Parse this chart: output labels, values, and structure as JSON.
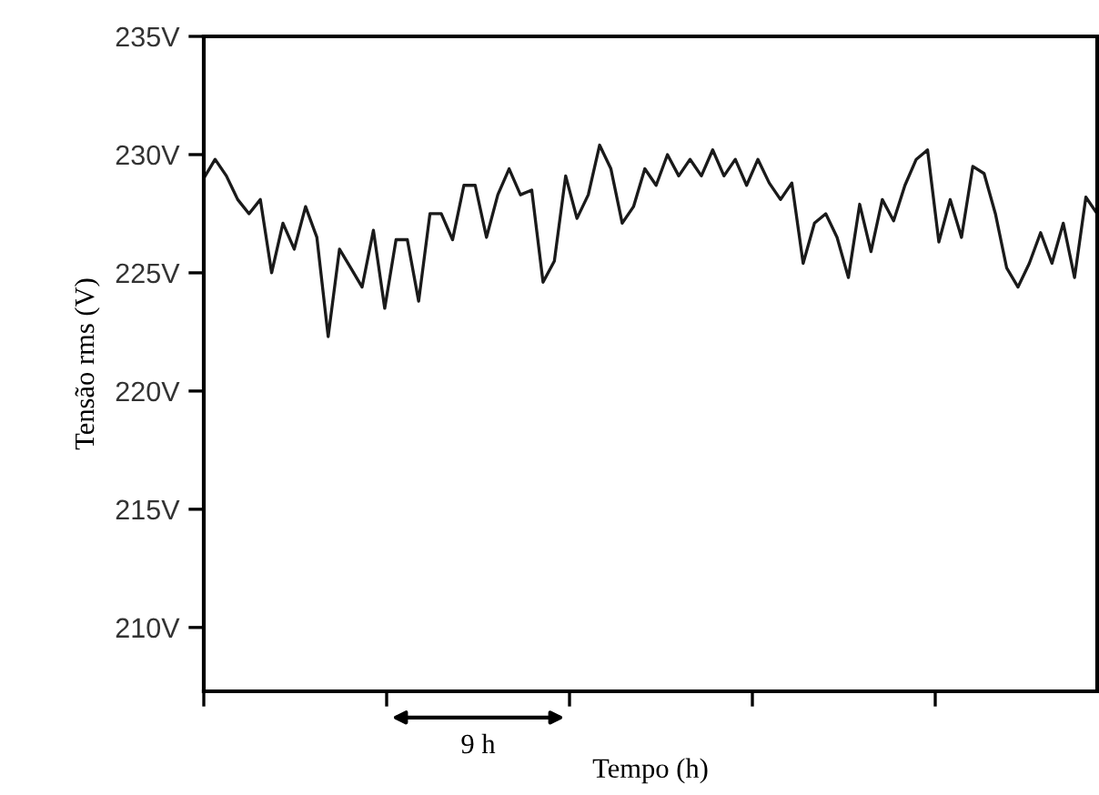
{
  "chart_data": {
    "type": "line",
    "xlabel": "Tempo (h)",
    "ylabel": "Tensão rms (V)",
    "annotations": [
      "9 h"
    ],
    "categories": [
      null,
      null,
      null,
      null,
      null,
      null,
      null,
      null,
      null,
      null,
      null,
      null,
      null,
      null,
      null,
      null,
      null,
      null,
      null,
      null,
      null,
      null,
      null,
      null,
      null,
      null,
      null,
      null,
      null,
      null,
      null,
      null,
      null,
      null,
      null,
      null,
      null,
      null,
      null,
      null,
      null,
      null,
      null,
      null,
      null,
      null,
      null,
      null,
      null,
      null,
      null,
      null,
      null,
      null,
      null,
      null,
      null,
      null,
      null,
      null,
      null,
      null,
      null,
      null,
      null,
      null,
      null,
      null,
      null,
      null,
      null,
      null,
      null,
      null,
      null,
      null,
      null,
      null,
      null,
      null
    ],
    "series": [
      {
        "color": "#1a1a1a",
        "values": [
          229.0,
          229.8,
          229.1,
          228.1,
          227.5,
          228.1,
          225.0,
          227.1,
          226.0,
          227.8,
          226.5,
          222.3,
          226.0,
          225.2,
          224.4,
          226.8,
          223.5,
          226.4,
          226.4,
          223.8,
          227.5,
          227.5,
          226.4,
          228.7,
          228.7,
          226.5,
          228.3,
          229.4,
          228.3,
          228.5,
          224.6,
          225.5,
          229.1,
          227.3,
          228.3,
          230.4,
          229.4,
          227.1,
          227.8,
          229.4,
          228.7,
          230.0,
          229.1,
          229.8,
          229.1,
          230.2,
          229.1,
          229.8,
          228.7,
          229.8,
          228.8,
          228.1,
          228.8,
          225.4,
          227.1,
          227.5,
          226.5,
          224.8,
          227.9,
          225.9,
          228.1,
          227.2,
          228.7,
          229.8,
          230.2,
          226.3,
          228.1,
          226.5,
          229.5,
          229.2,
          227.5,
          225.2,
          224.4,
          225.4,
          226.7,
          225.4,
          227.1,
          224.8,
          228.2,
          227.5
        ]
      }
    ],
    "ylim": [
      207.3,
      235
    ],
    "yticks": [
      {
        "value": 210,
        "label": "210V"
      },
      {
        "value": 215,
        "label": "215V"
      },
      {
        "value": 220,
        "label": "220V"
      },
      {
        "value": 225,
        "label": "225V"
      },
      {
        "value": 230,
        "label": "230V"
      },
      {
        "value": 235,
        "label": "235V"
      }
    ],
    "grid": false,
    "legend": false,
    "marker": "none",
    "line_style": "solid"
  }
}
